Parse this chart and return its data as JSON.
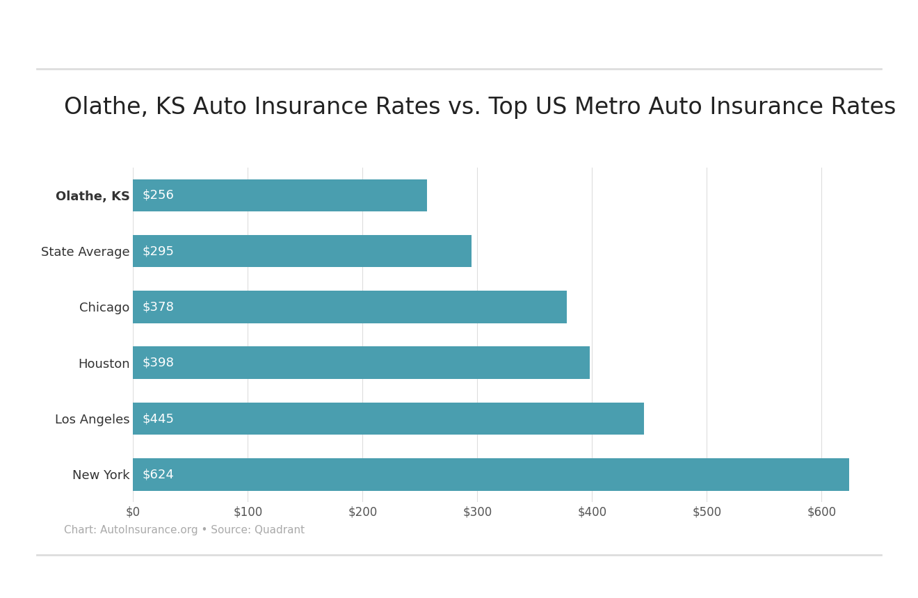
{
  "title": "Olathe, KS Auto Insurance Rates vs. Top US Metro Auto Insurance Rates",
  "categories": [
    "Olathe, KS",
    "State Average",
    "Chicago",
    "Houston",
    "Los Angeles",
    "New York"
  ],
  "values": [
    256,
    295,
    378,
    398,
    445,
    624
  ],
  "bar_color": "#4a9eaf",
  "label_color": "#ffffff",
  "title_fontsize": 24,
  "bar_label_fontsize": 13,
  "ytick_fontsize": 13,
  "xtick_fontsize": 12,
  "xlim": [
    0,
    660
  ],
  "xticks": [
    0,
    100,
    200,
    300,
    400,
    500,
    600
  ],
  "footer_text": "Chart: AutoInsurance.org • Source: Quadrant",
  "footer_fontsize": 11,
  "footer_color": "#aaaaaa",
  "background_color": "#ffffff",
  "bar_height": 0.58,
  "divider_color": "#dddddd",
  "divider_linewidth": 2.0
}
